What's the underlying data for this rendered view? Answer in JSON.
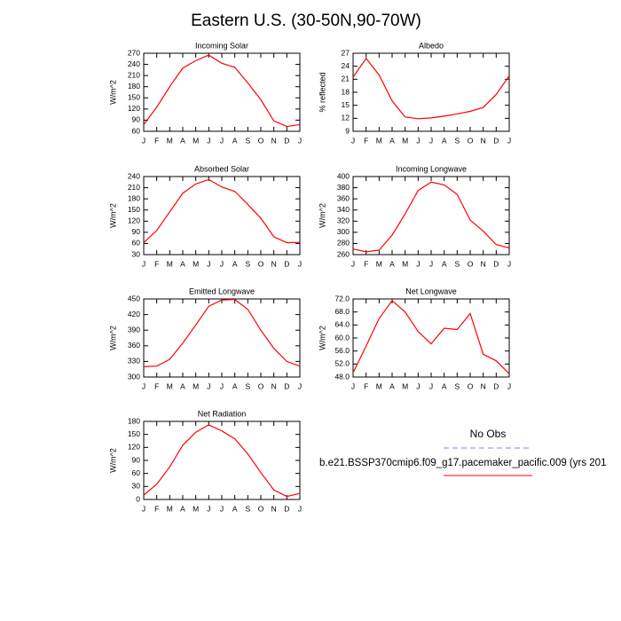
{
  "title": "Eastern U.S. (30-50N,90-70W)",
  "chart_data": [
    {
      "type": "line",
      "title": "Incoming Solar",
      "ylabel": "W/m^2",
      "categories": [
        "J",
        "F",
        "M",
        "A",
        "M",
        "J",
        "J",
        "A",
        "S",
        "O",
        "N",
        "D",
        "J"
      ],
      "values": [
        78,
        125,
        180,
        230,
        250,
        265,
        243,
        232,
        190,
        145,
        88,
        73,
        78
      ],
      "color": "#ff0000",
      "ylim": [
        60,
        270
      ],
      "yticks": [
        60,
        90,
        120,
        150,
        180,
        210,
        240,
        270
      ]
    },
    {
      "type": "line",
      "title": "Albedo",
      "ylabel": "% reflected",
      "categories": [
        "J",
        "F",
        "M",
        "A",
        "M",
        "J",
        "J",
        "A",
        "S",
        "O",
        "N",
        "D",
        "J"
      ],
      "values": [
        21.5,
        25.8,
        22,
        16,
        12.3,
        11.9,
        12.1,
        12.5,
        13,
        13.6,
        14.5,
        17.5,
        21.8
      ],
      "color": "#ff0000",
      "ylim": [
        9,
        27
      ],
      "yticks": [
        9,
        12,
        15,
        18,
        21,
        24,
        27
      ]
    },
    {
      "type": "line",
      "title": "Absorbed Solar",
      "ylabel": "W/m^2",
      "categories": [
        "J",
        "F",
        "M",
        "A",
        "M",
        "J",
        "J",
        "A",
        "S",
        "O",
        "N",
        "D",
        "J"
      ],
      "values": [
        62,
        95,
        145,
        195,
        220,
        232,
        212,
        200,
        165,
        128,
        78,
        62,
        63
      ],
      "color": "#ff0000",
      "ylim": [
        30,
        240
      ],
      "yticks": [
        30,
        60,
        90,
        120,
        150,
        180,
        210,
        240
      ]
    },
    {
      "type": "line",
      "title": "Incoming Longwave",
      "ylabel": "W/m^2",
      "categories": [
        "J",
        "F",
        "M",
        "A",
        "M",
        "J",
        "J",
        "A",
        "S",
        "O",
        "N",
        "D",
        "J"
      ],
      "values": [
        270,
        265,
        268,
        295,
        333,
        375,
        390,
        385,
        368,
        322,
        302,
        278,
        272
      ],
      "color": "#ff0000",
      "ylim": [
        260,
        400
      ],
      "yticks": [
        260,
        280,
        300,
        320,
        340,
        360,
        380,
        400
      ]
    },
    {
      "type": "line",
      "title": "Emitted Longwave",
      "ylabel": "W/m^2",
      "categories": [
        "J",
        "F",
        "M",
        "A",
        "M",
        "J",
        "J",
        "A",
        "S",
        "O",
        "N",
        "D",
        "J"
      ],
      "values": [
        320,
        321,
        334,
        365,
        400,
        436,
        448,
        449,
        430,
        390,
        355,
        330,
        321
      ],
      "color": "#ff0000",
      "ylim": [
        300,
        450
      ],
      "yticks": [
        300,
        330,
        360,
        390,
        420,
        450
      ]
    },
    {
      "type": "line",
      "title": "Net Longwave",
      "ylabel": "W/m^2",
      "categories": [
        "J",
        "F",
        "M",
        "A",
        "M",
        "J",
        "J",
        "A",
        "S",
        "O",
        "N",
        "D",
        "J"
      ],
      "values": [
        49.3,
        57.5,
        66,
        71.5,
        68,
        62,
        58.2,
        63,
        62.6,
        67.5,
        55,
        53,
        49
      ],
      "color": "#ff0000",
      "ylim": [
        48,
        72
      ],
      "yticks": [
        {
          "value": 48,
          "label": "48.0"
        },
        {
          "value": 52,
          "label": "52.0"
        },
        {
          "value": 56,
          "label": "56.0"
        },
        {
          "value": 60,
          "label": "60.0"
        },
        {
          "value": 64,
          "label": "64.0"
        },
        {
          "value": 68,
          "label": "68.0"
        },
        {
          "value": 72,
          "label": "72.0"
        }
      ]
    },
    {
      "type": "line",
      "title": "Net Radiation",
      "ylabel": "W/m^2",
      "categories": [
        "J",
        "F",
        "M",
        "A",
        "M",
        "J",
        "J",
        "A",
        "S",
        "O",
        "N",
        "D",
        "J"
      ],
      "values": [
        10,
        35,
        75,
        125,
        155,
        172,
        158,
        140,
        105,
        62,
        22,
        7,
        14
      ],
      "color": "#ff0000",
      "ylim": [
        0,
        180
      ],
      "yticks": [
        0,
        30,
        60,
        90,
        120,
        150,
        180
      ]
    }
  ],
  "legend": {
    "items": [
      {
        "label": "No Obs",
        "color": "#8080ff",
        "dashed": true
      },
      {
        "label": "b.e21.BSSP370cmip6.f09_g17.pacemaker_pacific.009 (yrs 201",
        "color": "#ff0000",
        "dashed": false
      }
    ]
  }
}
